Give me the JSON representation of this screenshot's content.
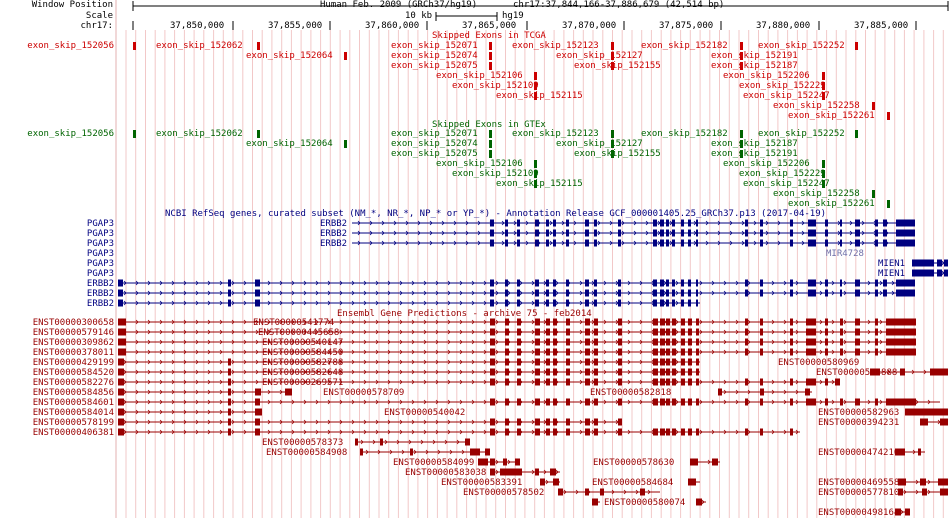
{
  "header": {
    "window_position_label": "Window Position",
    "scale_label": "Scale",
    "chrom_label": "chr17:",
    "assembly": "Human Feb. 2009 (GRCh37/hg19)",
    "position": "chr17:37,844,166-37,886,679 (42,514 bp)",
    "scale_value": "10 kb",
    "scale_assembly": "hg19"
  },
  "ruler": {
    "ticks": [
      "37,850,000",
      "37,855,000",
      "37,860,000",
      "37,865,000",
      "37,870,000",
      "37,875,000",
      "37,880,000",
      "37,885,000"
    ]
  },
  "tracks": {
    "tcga": {
      "title": "Skipped Exons in TCGA",
      "color": "#cc0000",
      "items": [
        "exon_skip_152056",
        "exon_skip_152062",
        "exon_skip_152064",
        "exon_skip_152071",
        "exon_skip_152074",
        "exon_skip_152075",
        "exon_skip_152106",
        "exon_skip_152109",
        "exon_skip_152115",
        "exon_skip_152123",
        "exon_skip_152127",
        "exon_skip_152155",
        "exon_skip_152182",
        "exon_skip_152187",
        "exon_skip_152191",
        "exon_skip_152206",
        "exon_skip_152229",
        "exon_skip_152247",
        "exon_skip_152252",
        "exon_skip_152258",
        "exon_skip_152261"
      ]
    },
    "gtex": {
      "title": "Skipped Exons in GTEx",
      "color": "#006400",
      "items": [
        "exon_skip_152056",
        "exon_skip_152062",
        "exon_skip_152064",
        "exon_skip_152071",
        "exon_skip_152074",
        "exon_skip_152075",
        "exon_skip_152106",
        "exon_skip_152109",
        "exon_skip_152115",
        "exon_skip_152123",
        "exon_skip_152127",
        "exon_skip_152155",
        "exon_skip_152182",
        "exon_skip_152187",
        "exon_skip_152191",
        "exon_skip_152206",
        "exon_skip_152229",
        "exon_skip_152247",
        "exon_skip_152252",
        "exon_skip_152258",
        "exon_skip_152261"
      ]
    },
    "refseq": {
      "title": "NCBI RefSeq genes, curated subset (NM_*, NR_*, NP_* or YP_*) - Annotation Release GCF_000001405.25_GRCh37.p13 (2017-04-19)",
      "color": "#000080",
      "left_labels": [
        "PGAP3",
        "PGAP3",
        "PGAP3",
        "PGAP3",
        "PGAP3",
        "PGAP3",
        "ERBB2",
        "ERBB2",
        "ERBB2"
      ],
      "inline_labels": [
        "ERBB2",
        "ERBB2",
        "ERBB2",
        "MIR4728",
        "MIEN1",
        "MIEN1"
      ]
    },
    "ensembl": {
      "title": "Ensembl Gene Predictions - archive 75 - feb2014",
      "color": "#990000",
      "left_labels": [
        "ENST00000300658",
        "ENST00000579146",
        "ENST00000309862",
        "ENST00000378011",
        "ENST00000429199",
        "ENST00000584520",
        "ENST00000582276",
        "ENST00000584856",
        "ENST00000584601",
        "ENST00000584014",
        "ENST00000578199",
        "ENST00000406381"
      ],
      "inline_labels": [
        "ENST00000541774",
        "ENST00000445658",
        "ENST00000540147",
        "ENST00000584450",
        "ENST00000582788",
        "ENST00000582648",
        "ENST00000269571",
        "ENST00000578709",
        "ENST00000540042",
        "ENST00000578373",
        "ENST00000584908",
        "ENST00000584099",
        "ENST00000583038",
        "ENST00000583391",
        "ENST00000578502",
        "ENST00000580969",
        "ENST00000582818",
        "ENST00000578630",
        "ENST00000584684",
        "ENST00000580074",
        "ENST00000584888",
        "ENST00000582963",
        "ENST00000394231",
        "ENST00000474210",
        "ENST00000469558",
        "ENST00000577810",
        "ENST00000498164"
      ]
    }
  }
}
